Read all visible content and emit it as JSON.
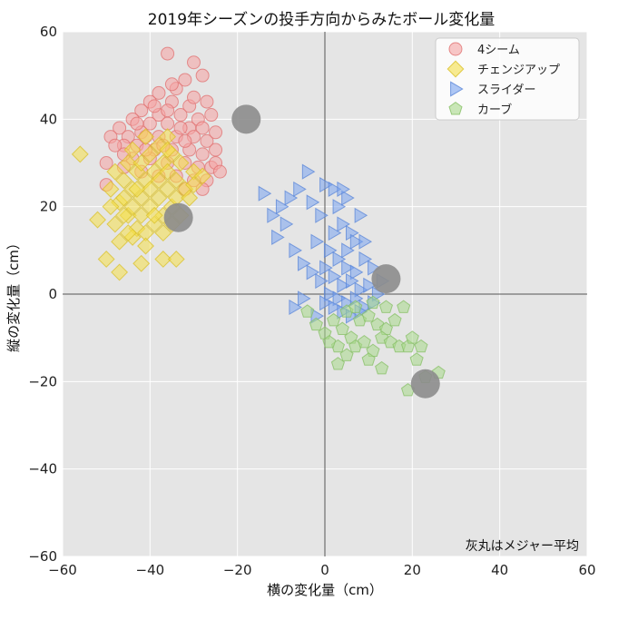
{
  "chart_data": {
    "type": "scatter",
    "title": "2019年シーズンの投手方向からみたボール変化量",
    "xlabel": "横の変化量（cm）",
    "ylabel": "縦の変化量（cm）",
    "xlim": [
      -60,
      60
    ],
    "ylim": [
      -60,
      60
    ],
    "xticks": [
      -60,
      -40,
      -20,
      0,
      20,
      40,
      60
    ],
    "yticks": [
      -60,
      -40,
      -20,
      0,
      20,
      40,
      60
    ],
    "grid": true,
    "legend_position": "top-right",
    "annotation": "灰丸はメジャー平均",
    "colors": {
      "background": "#e5e5e5",
      "grid": "#ffffff",
      "zero_lines": "#555555",
      "average": "#8c8c8c"
    },
    "series": [
      {
        "name": "4シーム",
        "marker": "circle",
        "color": "#f5a3a3",
        "edge": "#e07070",
        "points": [
          [
            -36,
            55
          ],
          [
            -30,
            53
          ],
          [
            -28,
            50
          ],
          [
            -32,
            49
          ],
          [
            -34,
            47
          ],
          [
            -38,
            46
          ],
          [
            -35,
            44
          ],
          [
            -40,
            44
          ],
          [
            -31,
            43
          ],
          [
            -27,
            44
          ],
          [
            -42,
            42
          ],
          [
            -38,
            41
          ],
          [
            -33,
            41
          ],
          [
            -29,
            40
          ],
          [
            -26,
            41
          ],
          [
            -44,
            40
          ],
          [
            -40,
            39
          ],
          [
            -36,
            39
          ],
          [
            -31,
            38
          ],
          [
            -28,
            38
          ],
          [
            -47,
            38
          ],
          [
            -45,
            36
          ],
          [
            -42,
            37
          ],
          [
            -38,
            36
          ],
          [
            -34,
            36
          ],
          [
            -30,
            36
          ],
          [
            -27,
            35
          ],
          [
            -25,
            37
          ],
          [
            -49,
            36
          ],
          [
            -46,
            34
          ],
          [
            -43,
            34
          ],
          [
            -39,
            33
          ],
          [
            -35,
            33
          ],
          [
            -31,
            33
          ],
          [
            -28,
            32
          ],
          [
            -25,
            33
          ],
          [
            -44,
            31
          ],
          [
            -40,
            31
          ],
          [
            -36,
            30
          ],
          [
            -32,
            30
          ],
          [
            -29,
            29
          ],
          [
            -26,
            29
          ],
          [
            -50,
            30
          ],
          [
            -42,
            28
          ],
          [
            -38,
            27
          ],
          [
            -34,
            27
          ],
          [
            -30,
            26
          ],
          [
            -27,
            26
          ],
          [
            -46,
            32
          ],
          [
            -37,
            34
          ],
          [
            -33,
            38
          ],
          [
            -41,
            36
          ],
          [
            -30,
            45
          ],
          [
            -36,
            42
          ],
          [
            -48,
            34
          ],
          [
            -25,
            30
          ],
          [
            -28,
            24
          ],
          [
            -32,
            24
          ],
          [
            -50,
            25
          ],
          [
            -24,
            28
          ],
          [
            -43,
            39
          ],
          [
            -39,
            43
          ],
          [
            -35,
            48
          ],
          [
            -32,
            35
          ],
          [
            -41,
            33
          ],
          [
            -46,
            29
          ]
        ]
      },
      {
        "name": "チェンジアップ",
        "marker": "diamond",
        "color": "#f5e04a",
        "edge": "#d9c02a",
        "points": [
          [
            -56,
            32
          ],
          [
            -49,
            24
          ],
          [
            -47,
            21
          ],
          [
            -45,
            18
          ],
          [
            -43,
            15
          ],
          [
            -41,
            14
          ],
          [
            -39,
            16
          ],
          [
            -37,
            18
          ],
          [
            -35,
            20
          ],
          [
            -46,
            26
          ],
          [
            -44,
            24
          ],
          [
            -42,
            22
          ],
          [
            -40,
            20
          ],
          [
            -38,
            22
          ],
          [
            -36,
            24
          ],
          [
            -34,
            26
          ],
          [
            -48,
            28
          ],
          [
            -45,
            30
          ],
          [
            -43,
            28
          ],
          [
            -41,
            26
          ],
          [
            -39,
            28
          ],
          [
            -37,
            30
          ],
          [
            -35,
            32
          ],
          [
            -33,
            30
          ],
          [
            -46,
            22
          ],
          [
            -44,
            20
          ],
          [
            -42,
            18
          ],
          [
            -40,
            24
          ],
          [
            -38,
            26
          ],
          [
            -36,
            28
          ],
          [
            -42,
            30
          ],
          [
            -40,
            32
          ],
          [
            -38,
            34
          ],
          [
            -36,
            36
          ],
          [
            -34,
            22
          ],
          [
            -32,
            24
          ],
          [
            -30,
            28
          ],
          [
            -28,
            27
          ],
          [
            -52,
            17
          ],
          [
            -48,
            16
          ],
          [
            -44,
            13
          ],
          [
            -41,
            11
          ],
          [
            -37,
            14
          ],
          [
            -35,
            16
          ],
          [
            -50,
            8
          ],
          [
            -47,
            5
          ],
          [
            -42,
            7
          ],
          [
            -37,
            8
          ],
          [
            -34,
            8
          ],
          [
            -31,
            22
          ],
          [
            -30,
            25
          ],
          [
            -46,
            18
          ],
          [
            -43,
            24
          ],
          [
            -39,
            18
          ],
          [
            -33,
            18
          ],
          [
            -45,
            14
          ],
          [
            -47,
            12
          ],
          [
            -36,
            33
          ],
          [
            -44,
            33
          ],
          [
            -49,
            20
          ],
          [
            -41,
            36
          ]
        ]
      },
      {
        "name": "スライダー",
        "marker": "triangle-right",
        "color": "#7aa4f0",
        "edge": "#5a86d8",
        "points": [
          [
            -14,
            23
          ],
          [
            -4,
            28
          ],
          [
            -8,
            22
          ],
          [
            -10,
            20
          ],
          [
            -12,
            18
          ],
          [
            -6,
            24
          ],
          [
            -3,
            21
          ],
          [
            -9,
            16
          ],
          [
            -11,
            13
          ],
          [
            -7,
            10
          ],
          [
            -5,
            7
          ],
          [
            -2,
            12
          ],
          [
            0,
            25
          ],
          [
            2,
            24
          ],
          [
            3,
            20
          ],
          [
            5,
            22
          ],
          [
            4,
            16
          ],
          [
            6,
            14
          ],
          [
            8,
            18
          ],
          [
            7,
            12
          ],
          [
            1,
            10
          ],
          [
            3,
            8
          ],
          [
            5,
            6
          ],
          [
            7,
            5
          ],
          [
            9,
            8
          ],
          [
            11,
            6
          ],
          [
            2,
            4
          ],
          [
            4,
            2
          ],
          [
            6,
            3
          ],
          [
            8,
            1
          ],
          [
            10,
            2
          ],
          [
            12,
            0
          ],
          [
            1,
            0
          ],
          [
            3,
            -1
          ],
          [
            5,
            -2
          ],
          [
            7,
            -1
          ],
          [
            9,
            -3
          ],
          [
            -1,
            3
          ],
          [
            -3,
            5
          ],
          [
            0,
            -2
          ],
          [
            2,
            -3
          ],
          [
            4,
            -4
          ],
          [
            6,
            -5
          ],
          [
            -5,
            -1
          ],
          [
            -7,
            -3
          ],
          [
            -2,
            -5
          ],
          [
            11,
            -2
          ],
          [
            13,
            3
          ],
          [
            8,
            -4
          ],
          [
            0,
            6
          ],
          [
            2,
            14
          ],
          [
            5,
            10
          ],
          [
            -1,
            18
          ],
          [
            9,
            12
          ],
          [
            4,
            24
          ]
        ]
      },
      {
        "name": "カーブ",
        "marker": "pentagon",
        "color": "#a8d88a",
        "edge": "#86bf64",
        "points": [
          [
            -4,
            -4
          ],
          [
            -2,
            -7
          ],
          [
            0,
            -9
          ],
          [
            2,
            -6
          ],
          [
            4,
            -8
          ],
          [
            6,
            -10
          ],
          [
            8,
            -6
          ],
          [
            10,
            -5
          ],
          [
            12,
            -7
          ],
          [
            14,
            -8
          ],
          [
            16,
            -6
          ],
          [
            18,
            -3
          ],
          [
            3,
            -12
          ],
          [
            5,
            -14
          ],
          [
            7,
            -12
          ],
          [
            9,
            -11
          ],
          [
            11,
            -13
          ],
          [
            13,
            -10
          ],
          [
            15,
            -11
          ],
          [
            17,
            -12
          ],
          [
            19,
            -12
          ],
          [
            21,
            -15
          ],
          [
            3,
            -16
          ],
          [
            10,
            -15
          ],
          [
            13,
            -17
          ],
          [
            23,
            -19
          ],
          [
            26,
            -18
          ],
          [
            19,
            -22
          ],
          [
            1,
            -11
          ],
          [
            5,
            -4
          ],
          [
            7,
            -3
          ],
          [
            11,
            -2
          ],
          [
            14,
            -3
          ],
          [
            20,
            -10
          ],
          [
            22,
            -12
          ]
        ]
      }
    ],
    "averages": [
      {
        "x": -18,
        "y": 40
      },
      {
        "x": -33.5,
        "y": 17.5
      },
      {
        "x": 14,
        "y": 3.5
      },
      {
        "x": 23,
        "y": -20.5
      }
    ]
  }
}
